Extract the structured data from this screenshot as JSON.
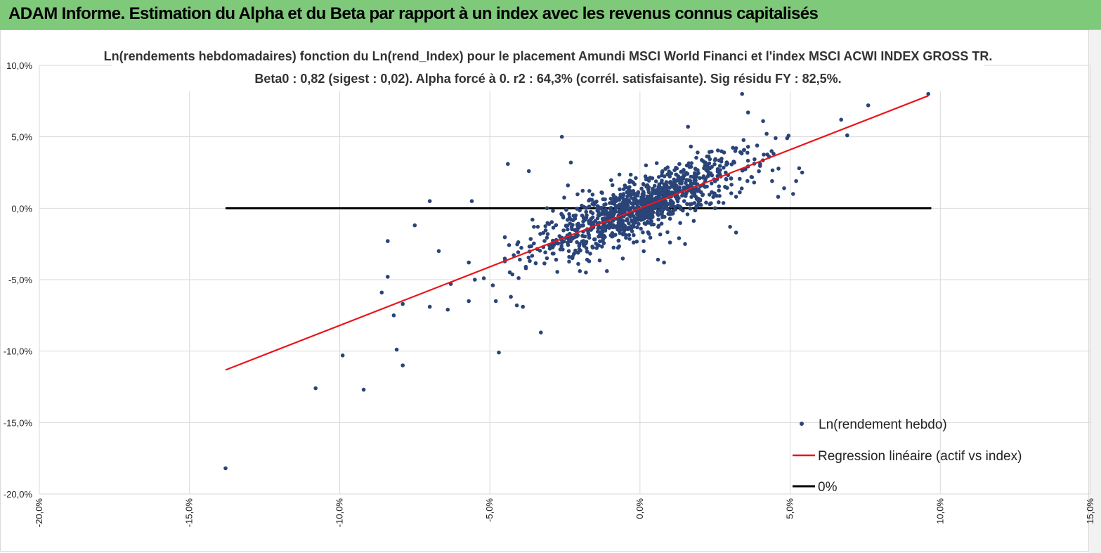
{
  "header": {
    "title": "ADAM Informe. Estimation du Alpha et du Beta par rapport à un index avec les revenus connus capitalisés"
  },
  "chart_data": {
    "type": "scatter",
    "title": "Ln(rendements hebdomadaires) fonction du Ln(rend_Index) pour le placement Amundi MSCI World Financi et l'index MSCI ACWI INDEX GROSS TR.",
    "subtitle": "Beta0 : 0,82  (sigest : 0,02).  Alpha forcé à 0. r2 : 64,3% (corrél. satisfaisante). Sig résidu FY : 82,5%.",
    "xlabel": "",
    "ylabel": "",
    "xlim": [
      -0.2,
      0.15
    ],
    "ylim": [
      -0.2,
      0.1
    ],
    "x_ticks": [
      {
        "value": -0.2,
        "label": "-20,0%"
      },
      {
        "value": -0.15,
        "label": "-15,0%"
      },
      {
        "value": -0.1,
        "label": "-10,0%"
      },
      {
        "value": -0.05,
        "label": "-5,0%"
      },
      {
        "value": 0.0,
        "label": "0,0%"
      },
      {
        "value": 0.05,
        "label": "5,0%"
      },
      {
        "value": 0.1,
        "label": "10,0%"
      },
      {
        "value": 0.15,
        "label": "15,0%"
      }
    ],
    "y_ticks": [
      {
        "value": 0.1,
        "label": "10,0%"
      },
      {
        "value": 0.05,
        "label": "5,0%"
      },
      {
        "value": 0.0,
        "label": "0,0%"
      },
      {
        "value": -0.05,
        "label": "-5,0%"
      },
      {
        "value": -0.1,
        "label": "-10,0%"
      },
      {
        "value": -0.15,
        "label": "-15,0%"
      },
      {
        "value": -0.2,
        "label": "-20,0%"
      }
    ],
    "grid": true,
    "legend_position": "bottom-right",
    "colors": {
      "points": "#2a4478",
      "regression": "#e8161b",
      "zero_line": "#000000",
      "grid": "#d9d9d9",
      "banner": "#7fc97a"
    },
    "series": [
      {
        "name": "Ln(rendement hebdo)",
        "kind": "scatter",
        "points": [
          [
            -0.138,
            -0.182
          ],
          [
            -0.108,
            -0.126
          ],
          [
            -0.092,
            -0.127
          ],
          [
            -0.099,
            -0.103
          ],
          [
            -0.081,
            -0.099
          ],
          [
            -0.079,
            -0.11
          ],
          [
            -0.084,
            -0.023
          ],
          [
            -0.084,
            -0.048
          ],
          [
            -0.086,
            -0.059
          ],
          [
            -0.082,
            -0.075
          ],
          [
            -0.079,
            -0.067
          ],
          [
            -0.07,
            0.005
          ],
          [
            -0.075,
            -0.012
          ],
          [
            -0.067,
            -0.03
          ],
          [
            -0.07,
            -0.069
          ],
          [
            -0.064,
            -0.071
          ],
          [
            -0.063,
            -0.053
          ],
          [
            -0.056,
            0.005
          ],
          [
            -0.055,
            -0.05
          ],
          [
            -0.057,
            -0.065
          ],
          [
            -0.057,
            -0.038
          ],
          [
            -0.052,
            -0.049
          ],
          [
            -0.049,
            -0.054
          ],
          [
            -0.048,
            -0.065
          ],
          [
            -0.047,
            -0.101
          ],
          [
            -0.044,
            0.031
          ],
          [
            -0.043,
            -0.062
          ],
          [
            -0.041,
            -0.068
          ],
          [
            -0.039,
            -0.069
          ],
          [
            -0.037,
            0.026
          ],
          [
            -0.04,
            -0.036
          ],
          [
            -0.038,
            -0.041
          ],
          [
            -0.033,
            -0.087
          ],
          [
            -0.034,
            -0.013
          ],
          [
            -0.031,
            -0.035
          ],
          [
            -0.026,
            0.05
          ],
          [
            -0.024,
            0.016
          ],
          [
            -0.023,
            0.032
          ],
          [
            -0.031,
            0.0
          ],
          [
            -0.022,
            -0.032
          ],
          [
            -0.018,
            -0.045
          ],
          [
            -0.011,
            -0.044
          ],
          [
            -0.005,
            -0.015
          ],
          [
            0.003,
            -0.018
          ],
          [
            0.008,
            -0.038
          ],
          [
            0.006,
            -0.036
          ],
          [
            0.01,
            -0.024
          ],
          [
            0.015,
            -0.025
          ],
          [
            0.013,
            -0.021
          ],
          [
            0.017,
            0.029
          ],
          [
            0.021,
            0.033
          ],
          [
            0.024,
            0.023
          ],
          [
            0.028,
            0.039
          ],
          [
            0.032,
            0.042
          ],
          [
            0.034,
            0.08
          ],
          [
            0.036,
            0.067
          ],
          [
            0.041,
            0.061
          ],
          [
            0.04,
            0.031
          ],
          [
            0.044,
            0.019
          ],
          [
            0.049,
            0.049
          ],
          [
            0.051,
            0.01
          ],
          [
            0.054,
            0.025
          ],
          [
            0.046,
            0.008
          ],
          [
            0.048,
            0.014
          ],
          [
            0.053,
            0.028
          ],
          [
            0.052,
            0.019
          ],
          [
            0.067,
            0.062
          ],
          [
            0.069,
            0.051
          ],
          [
            0.076,
            0.072
          ],
          [
            0.096,
            0.08
          ],
          [
            0.016,
            0.057
          ],
          [
            0.002,
            0.03
          ],
          [
            0.03,
            -0.013
          ],
          [
            0.032,
            -0.017
          ],
          [
            0.025,
            0.0
          ],
          [
            0.038,
            0.018
          ],
          [
            0.043,
            0.036
          ],
          [
            0.036,
            0.043
          ]
        ],
        "generated_cloud": {
          "count": 1100,
          "beta": 0.82,
          "center_x": 0.0,
          "sd_x": 0.017,
          "sd_residual": 0.0095
        }
      },
      {
        "name": "Regression linéaire (actif vs index)",
        "kind": "line",
        "points": [
          [
            -0.138,
            -0.1132
          ],
          [
            0.096,
            0.0787
          ]
        ]
      },
      {
        "name": "0%",
        "kind": "line",
        "points": [
          [
            -0.138,
            0.0
          ],
          [
            0.097,
            0.0
          ]
        ]
      }
    ]
  }
}
